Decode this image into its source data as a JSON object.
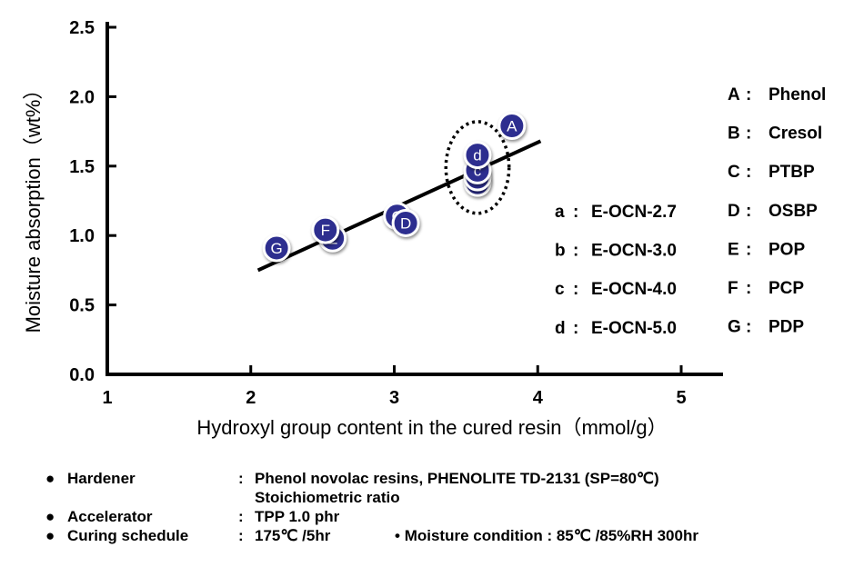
{
  "chart_data": {
    "type": "scatter",
    "title": "",
    "xlabel": "Hydroxyl group content in the cured resin（mmol/g）",
    "ylabel": "Moisture absorption（wt%）",
    "xlim": [
      1,
      5.25
    ],
    "ylim": [
      0,
      2.5
    ],
    "x_ticks": [
      "1",
      "2",
      "3",
      "4",
      "5"
    ],
    "y_ticks": [
      "0.0",
      "0.5",
      "1.0",
      "1.5",
      "2.0",
      "2.5"
    ],
    "points": [
      {
        "label": "G",
        "x": 2.18,
        "y": 0.91
      },
      {
        "label": "E",
        "x": 2.57,
        "y": 0.98
      },
      {
        "label": "F",
        "x": 2.52,
        "y": 1.04
      },
      {
        "label": "C",
        "x": 3.02,
        "y": 1.14
      },
      {
        "label": "D",
        "x": 3.08,
        "y": 1.09
      },
      {
        "label": "a",
        "x": 3.58,
        "y": 1.38
      },
      {
        "label": "b",
        "x": 3.58,
        "y": 1.42
      },
      {
        "label": "c",
        "x": 3.58,
        "y": 1.47
      },
      {
        "label": "d",
        "x": 3.58,
        "y": 1.58
      },
      {
        "label": "A",
        "x": 3.82,
        "y": 1.79
      }
    ],
    "trendline": {
      "x": [
        2.05,
        4.02
      ],
      "y": [
        0.75,
        1.68
      ]
    },
    "highlight_ellipse": {
      "cx": 3.58,
      "cy": 1.49,
      "rx": 0.22,
      "ry": 0.33
    },
    "legend_left": [
      {
        "key": "a",
        "text": "E-OCN-2.7"
      },
      {
        "key": "b",
        "text": "E-OCN-3.0"
      },
      {
        "key": "c",
        "text": "E-OCN-4.0"
      },
      {
        "key": "d",
        "text": "E-OCN-5.0"
      }
    ],
    "legend_right": [
      {
        "key": "A",
        "text": "Phenol"
      },
      {
        "key": "B",
        "text": "Cresol"
      },
      {
        "key": "C",
        "text": "PTBP"
      },
      {
        "key": "D",
        "text": "OSBP"
      },
      {
        "key": "E",
        "text": "POP"
      },
      {
        "key": "F",
        "text": "PCP"
      },
      {
        "key": "G",
        "text": "PDP"
      }
    ],
    "legend_separator": ":",
    "colors": {
      "marker_fill": "#2d2e8f",
      "marker_outline": "#ffffff",
      "line": "#000000"
    }
  },
  "notes": {
    "bullet": "●",
    "small_bullet": "•",
    "colon": ":",
    "rows": [
      {
        "label": "Hardener",
        "value": "Phenol novolac resins, PHENOLITE TD-2131 (SP=80℃)"
      },
      {
        "label": "",
        "value": "Stoichiometric ratio"
      },
      {
        "label": "Accelerator",
        "value": "TPP  1.0 phr"
      },
      {
        "label": "Curing schedule",
        "value": "175℃ /5hr",
        "extra": "Moisture condition : 85℃ /85%RH 300hr"
      }
    ]
  }
}
